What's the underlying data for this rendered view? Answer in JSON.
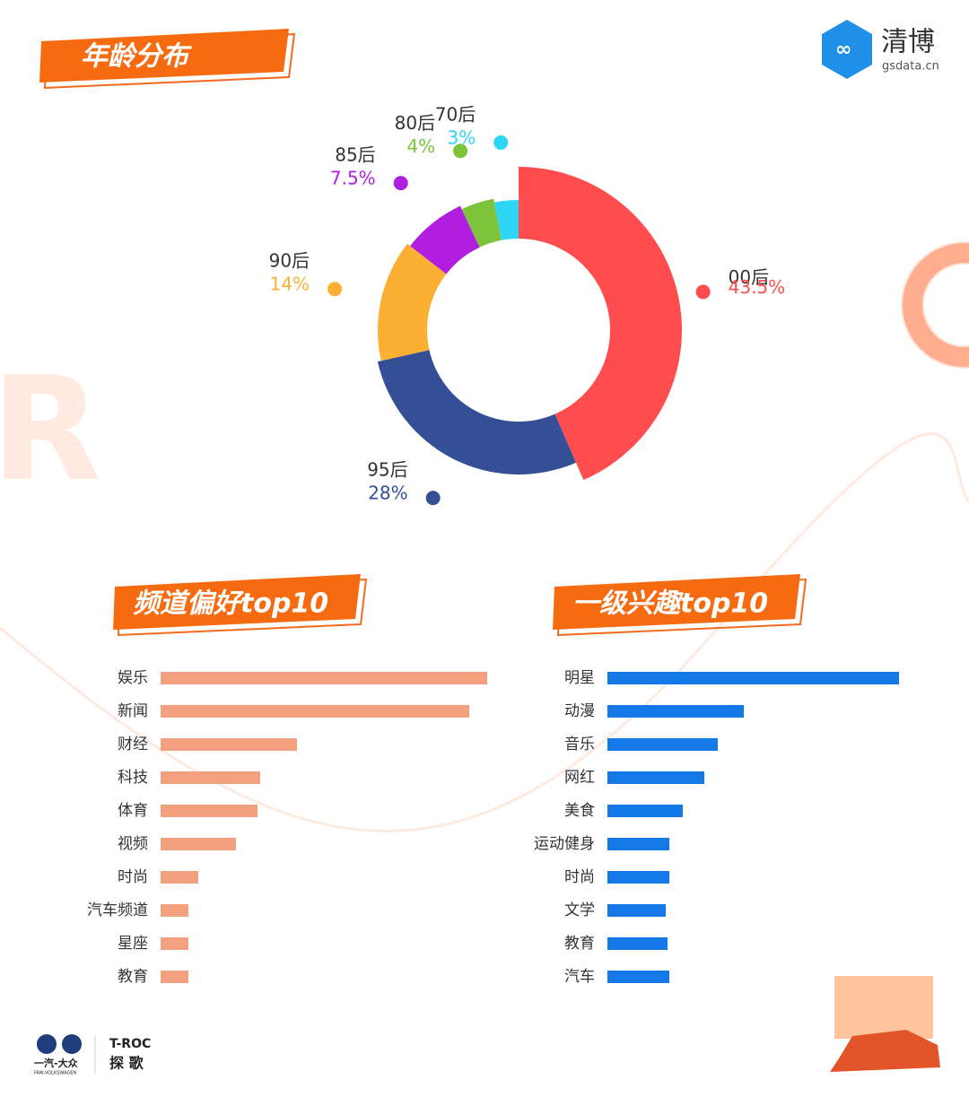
{
  "brand": {
    "name": "清博",
    "site": "gsdata.cn"
  },
  "footer": {
    "maker": "一汽-大众",
    "maker_en": "FAW-VOLKSWAGEN",
    "model": "T-ROC",
    "model_cn": "探 歌"
  },
  "chart_data": [
    {
      "type": "donut",
      "title": "年龄分布",
      "categories": [
        "00后",
        "95后",
        "90后",
        "85后",
        "80后",
        "70后"
      ],
      "values": [
        43.5,
        28,
        14,
        7.5,
        4,
        3
      ],
      "value_labels": [
        "43.5%",
        "28%",
        "14%",
        "7.5%",
        "4%",
        "3%"
      ],
      "colors": [
        "#ff4d4f",
        "#344f96",
        "#fbb034",
        "#b01ee0",
        "#7dc43a",
        "#2fd5f5"
      ]
    },
    {
      "type": "hbar",
      "title": "频道偏好top10",
      "categories": [
        "娱乐",
        "新闻",
        "财经",
        "科技",
        "体育",
        "视频",
        "时尚",
        "汽车频道",
        "星座",
        "教育"
      ],
      "values": [
        364,
        344,
        152,
        111,
        108,
        84,
        42,
        31,
        31,
        31
      ],
      "color": "#f2a07d"
    },
    {
      "type": "hbar",
      "title": "一级兴趣top10",
      "categories": [
        "明星",
        "动漫",
        "音乐",
        "网红",
        "美食",
        "运动健身",
        "时尚",
        "文学",
        "教育",
        "汽车"
      ],
      "values": [
        325,
        152,
        123,
        108,
        84,
        69,
        69,
        65,
        67,
        69
      ],
      "color": "#1479e6"
    }
  ]
}
